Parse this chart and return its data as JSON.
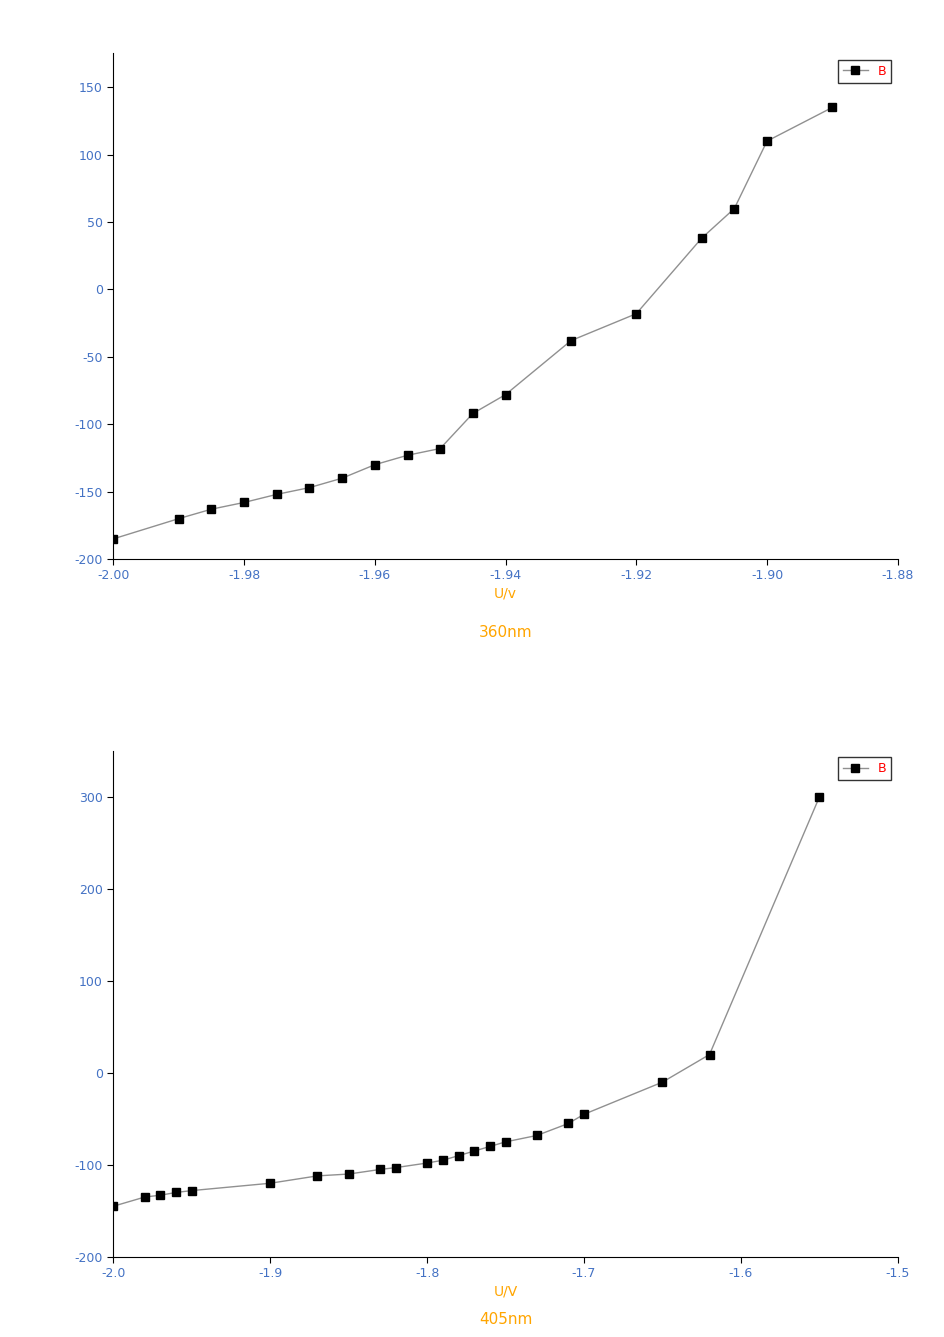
{
  "chart1": {
    "x": [
      -2.0,
      -1.99,
      -1.985,
      -1.98,
      -1.975,
      -1.97,
      -1.965,
      -1.96,
      -1.955,
      -1.95,
      -1.945,
      -1.94,
      -1.93,
      -1.92,
      -1.91,
      -1.905,
      -1.9,
      -1.89
    ],
    "y": [
      -185,
      -170,
      -163,
      -158,
      -152,
      -147,
      -140,
      -130,
      -123,
      -118,
      -92,
      -78,
      -38,
      -18,
      38,
      60,
      110,
      135
    ],
    "xlabel": "U/v",
    "xlabel2": "360nm",
    "legend": "B",
    "xlim": [
      -2.0,
      -1.88
    ],
    "ylim": [
      -200,
      175
    ],
    "xticks": [
      -2.0,
      -1.98,
      -1.96,
      -1.94,
      -1.92,
      -1.9,
      -1.88
    ],
    "yticks": [
      -200,
      -150,
      -100,
      -50,
      0,
      50,
      100,
      150
    ],
    "xlabel_color": "#FFA500",
    "xlabel2_color": "#FFA500",
    "yticklabel_color": "#4472C4",
    "xticklabel_color": "#4472C4"
  },
  "chart2": {
    "x": [
      -2.0,
      -1.98,
      -1.97,
      -1.96,
      -1.95,
      -1.9,
      -1.87,
      -1.85,
      -1.83,
      -1.82,
      -1.8,
      -1.79,
      -1.78,
      -1.77,
      -1.76,
      -1.75,
      -1.73,
      -1.71,
      -1.7,
      -1.65,
      -1.62,
      -1.55
    ],
    "y": [
      -145,
      -135,
      -133,
      -130,
      -128,
      -120,
      -112,
      -110,
      -105,
      -103,
      -98,
      -95,
      -90,
      -85,
      -80,
      -75,
      -68,
      -55,
      -45,
      -10,
      20,
      300
    ],
    "xlabel": "U/V",
    "xlabel2": "405nm",
    "legend": "B",
    "xlim": [
      -2.0,
      -1.5
    ],
    "ylim": [
      -200,
      350
    ],
    "xticks": [
      -2.0,
      -1.9,
      -1.8,
      -1.7,
      -1.6,
      -1.5
    ],
    "yticks": [
      -200,
      -100,
      0,
      100,
      200,
      300
    ],
    "xlabel_color": "#FFA500",
    "xlabel2_color": "#FFA500",
    "yticklabel_color": "#4472C4",
    "xticklabel_color": "#4472C4"
  },
  "background_color": "#FFFFFF",
  "line_color": "#909090",
  "marker_color": "#000000",
  "legend_label_color": "#FF0000"
}
